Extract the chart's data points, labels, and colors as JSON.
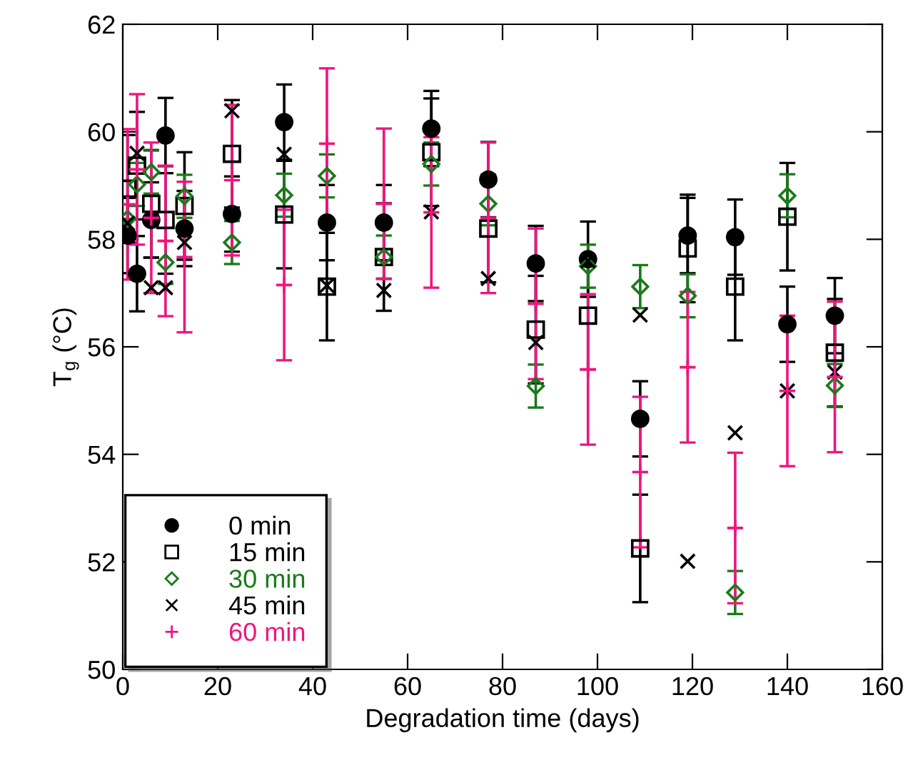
{
  "chart_data": {
    "type": "scatter",
    "xlabel": "Degradation time (days)",
    "ylabel": "T$_{g}$ (°C)",
    "xlim": [
      0,
      160
    ],
    "xticks": [
      0,
      20,
      40,
      60,
      80,
      100,
      120,
      140,
      160
    ],
    "ylim": [
      50,
      62
    ],
    "yticks": [
      50,
      52,
      54,
      56,
      58,
      60,
      62
    ],
    "grid": false,
    "legend": "bottom left",
    "x": [
      1,
      3,
      6,
      9,
      13,
      23,
      34,
      43,
      55,
      65,
      77,
      87,
      98,
      109,
      119,
      129,
      140,
      150
    ],
    "series": [
      {
        "name": "0 min",
        "color": "#000000",
        "marker": "circle",
        "values": [
          58.07,
          57.36,
          58.36,
          59.93,
          58.2,
          58.47,
          60.18,
          58.31,
          58.31,
          60.06,
          59.11,
          57.55,
          57.63,
          54.66,
          58.07,
          58.04,
          56.42,
          56.58
        ],
        "errors": [
          0.7,
          0.7,
          0.7,
          0.7,
          0.7,
          0.7,
          0.7,
          0.7,
          0.7,
          0.7,
          0.7,
          0.7,
          0.7,
          0.7,
          0.7,
          0.7,
          0.7,
          0.7
        ]
      },
      {
        "name": "15 min",
        "color": "#000000",
        "marker": "square",
        "values": [
          58.94,
          59.37,
          58.66,
          58.36,
          58.62,
          59.59,
          58.46,
          57.12,
          57.67,
          59.62,
          58.2,
          56.32,
          56.58,
          52.25,
          57.83,
          57.12,
          58.42,
          55.89
        ],
        "errors": [
          1.0,
          1.0,
          1.0,
          1.0,
          1.0,
          1.0,
          1.0,
          1.0,
          1.0,
          1.0,
          1.0,
          1.0,
          1.0,
          1.0,
          1.0,
          1.0,
          1.0,
          1.0
        ]
      },
      {
        "name": "30 min",
        "color": "#1a7a1a",
        "marker": "diamond",
        "values": [
          58.38,
          59.02,
          59.25,
          57.57,
          58.8,
          57.94,
          58.82,
          59.18,
          57.67,
          59.4,
          58.66,
          55.27,
          57.5,
          57.12,
          56.95,
          51.43,
          58.81,
          55.28
        ],
        "errors": [
          null,
          0.4,
          0.4,
          0.4,
          0.4,
          0.4,
          0.4,
          0.4,
          0.4,
          0.4,
          0.4,
          0.4,
          0.4,
          0.4,
          0.4,
          0.4,
          0.4,
          0.4
        ]
      },
      {
        "name": "45 min",
        "color": "#000000",
        "marker": "cross",
        "values": [
          58.3,
          59.6,
          57.1,
          57.1,
          57.94,
          60.39,
          59.58,
          57.14,
          57.05,
          58.51,
          57.27,
          56.08,
          57.6,
          56.59,
          52.01,
          54.4,
          55.18,
          55.53
        ]
      },
      {
        "name": "60 min",
        "color": "#f0157f",
        "marker": "plus",
        "values": [
          58.65,
          59.3,
          58.4,
          57.97,
          57.67,
          59.1,
          57.15,
          59.78,
          58.66,
          58.5,
          58.4,
          56.8,
          55.58,
          53.67,
          55.62,
          52.63,
          55.18,
          55.44
        ],
        "errors": [
          1.4,
          1.4,
          1.4,
          1.4,
          1.4,
          1.4,
          1.4,
          1.4,
          1.4,
          1.4,
          1.4,
          1.4,
          1.4,
          1.4,
          1.4,
          1.4,
          1.4,
          1.4
        ]
      }
    ]
  }
}
